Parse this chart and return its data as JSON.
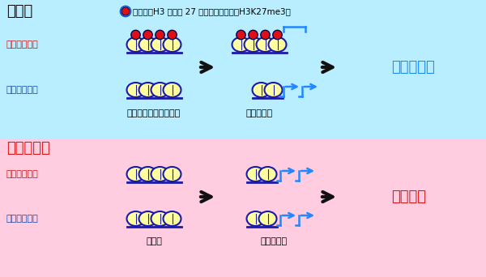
{
  "top_bg": "#b8eeff",
  "bottom_bg": "#ffcce0",
  "nucleosome_fill": "#ffffa0",
  "nucleosome_edge": "#1a1aaa",
  "mark_fill": "#dd1111",
  "mark_edge": "#000066",
  "blue_arrow_color": "#2288ff",
  "black_arrow_color": "#111111",
  "title_top": "受精胚",
  "title_bottom": "クローン胚",
  "label_hata": "母方遷伝子座",
  "label_chichi": "父方遷伝子座",
  "label_gamete": "配偶子（精子・卵子）",
  "label_blasto": "着床前期胚",
  "label_soma": "体細胞",
  "legend_text": "ヒストンH3 リジン 27 のトリメチル化（H3K27me3）",
  "result_top": "正常に発生",
  "result_bottom": "発生異常",
  "result_top_color": "#1188ff",
  "result_bottom_color": "#dd1111"
}
